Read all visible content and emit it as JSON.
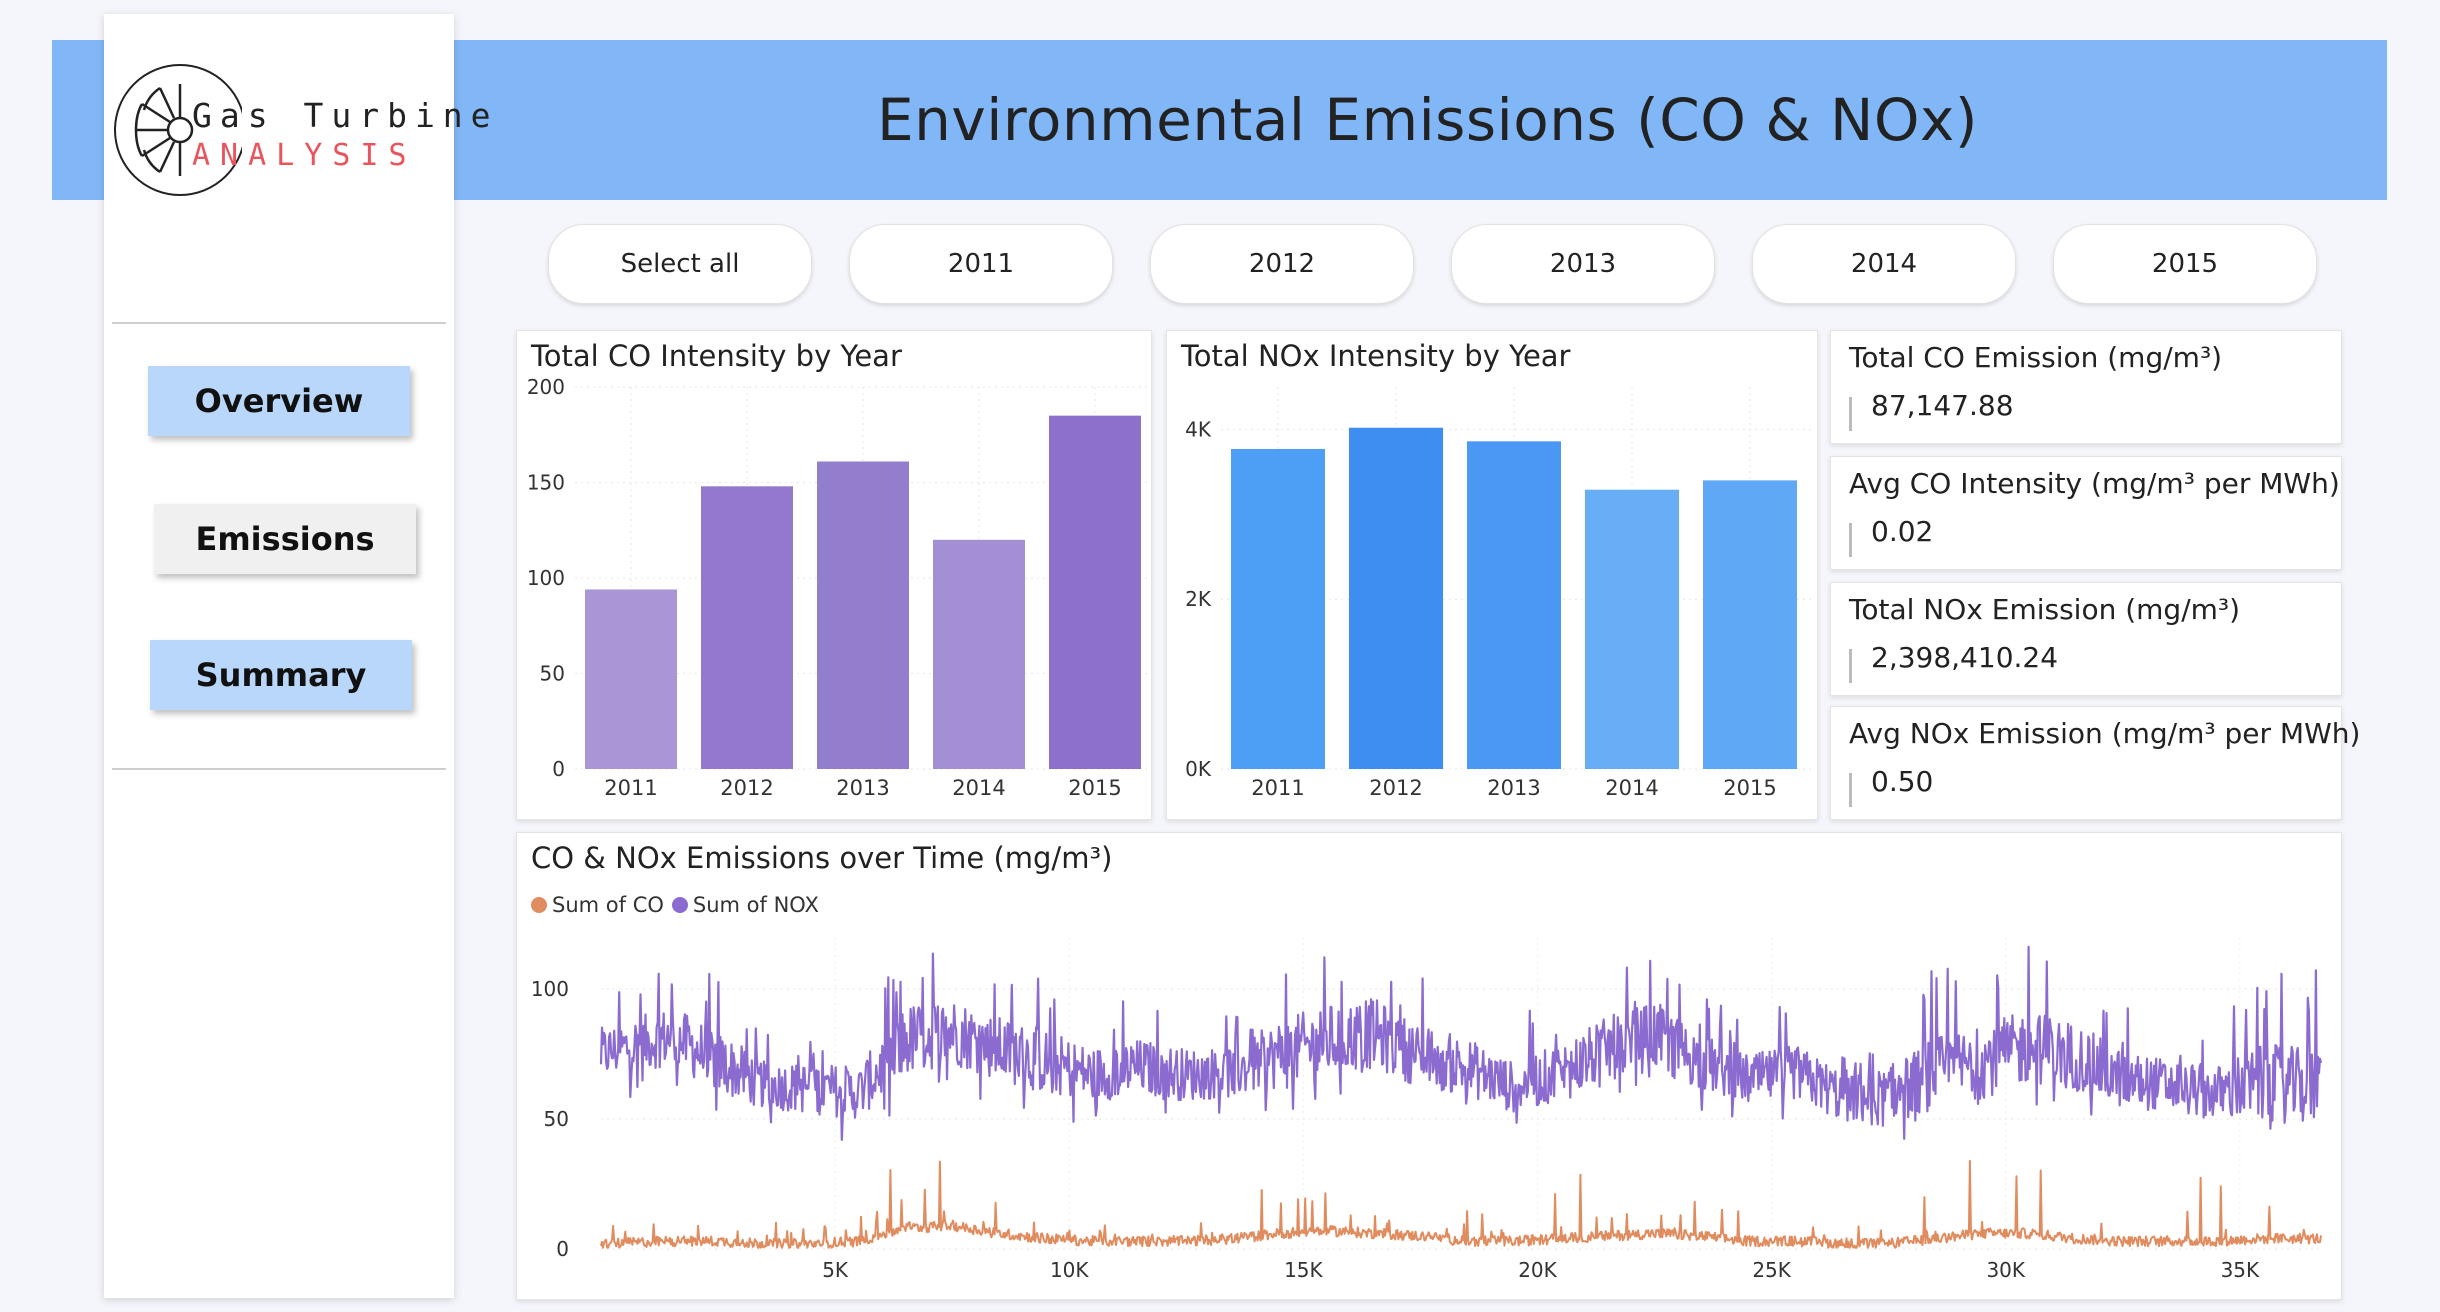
{
  "header": {
    "title": "Environmental Emissions (CO & NOx)"
  },
  "logo": {
    "line1": "Gas Turbine",
    "line2": "ANALYSIS",
    "accent_color": "#e8555c"
  },
  "nav": [
    {
      "label": "Overview",
      "style": "blue"
    },
    {
      "label": "Emissions",
      "style": "grey"
    },
    {
      "label": "Summary",
      "style": "blue"
    }
  ],
  "year_filter": [
    "Select all",
    "2011",
    "2012",
    "2013",
    "2014",
    "2015"
  ],
  "co_chart": {
    "title": "Total CO Intensity by Year",
    "yticks": [
      "0",
      "50",
      "100",
      "150",
      "200"
    ]
  },
  "nox_chart": {
    "title": "Total NOx Intensity by Year",
    "yticks": [
      "0K",
      "2K",
      "4K"
    ]
  },
  "cards": [
    {
      "label": "Total CO Emission (mg/m³)",
      "value": "87,147.88"
    },
    {
      "label": "Avg CO Intensity (mg/m³ per MWh)",
      "value": "0.02"
    },
    {
      "label": "Total NOx Emission (mg/m³)",
      "value": "2,398,410.24"
    },
    {
      "label": "Avg NOx Emission (mg/m³ per MWh)",
      "value": "0.50"
    }
  ],
  "line_chart": {
    "title": "CO & NOx Emissions over Time (mg/m³)",
    "legend": [
      {
        "name": "Sum of CO",
        "color": "#e08c5f"
      },
      {
        "name": "Sum of NOX",
        "color": "#8b6bcf"
      }
    ],
    "yticks": [
      "0",
      "50",
      "100"
    ],
    "xticks": [
      "5K",
      "10K",
      "15K",
      "20K",
      "25K",
      "30K",
      "35K"
    ]
  },
  "chart_data": [
    {
      "type": "bar",
      "title": "Total CO Intensity by Year",
      "categories": [
        "2011",
        "2012",
        "2013",
        "2014",
        "2015"
      ],
      "values": [
        94,
        148,
        161,
        120,
        185
      ],
      "ylim": [
        0,
        200
      ],
      "colors": [
        "#a896d6",
        "#9478cf",
        "#937dcd",
        "#a38fd4",
        "#8d70c9"
      ]
    },
    {
      "type": "bar",
      "title": "Total NOx Intensity by Year",
      "categories": [
        "2011",
        "2012",
        "2013",
        "2014",
        "2015"
      ],
      "values": [
        3770,
        4020,
        3860,
        3290,
        3400
      ],
      "ylim": [
        0,
        4500
      ],
      "colors": [
        "#4d9ff5",
        "#3d8ef0",
        "#4a98f3",
        "#68aef7",
        "#5ea8f6"
      ]
    },
    {
      "type": "line",
      "title": "CO & NOx Emissions over Time (mg/m³)",
      "xlim": [
        0,
        36733
      ],
      "ylim": [
        0,
        120
      ],
      "series": [
        {
          "name": "Sum of NOX",
          "color": "#8b6bcf",
          "x": [
            0,
            1500,
            2500,
            3500,
            4500,
            5500,
            6500,
            7500,
            8500,
            9500,
            10500,
            11500,
            12500,
            13500,
            14500,
            15500,
            16500,
            17500,
            18500,
            19500,
            20500,
            21500,
            22500,
            23500,
            24500,
            25500,
            26500,
            27500,
            28500,
            29500,
            30500,
            31500,
            32500,
            33500,
            34500,
            35500,
            36700
          ],
          "y": [
            75,
            82,
            72,
            63,
            62,
            60,
            80,
            84,
            77,
            72,
            67,
            70,
            67,
            68,
            75,
            80,
            83,
            74,
            70,
            62,
            68,
            77,
            82,
            72,
            65,
            68,
            59,
            58,
            68,
            72,
            78,
            74,
            65,
            63,
            60,
            64,
            62
          ],
          "ymin": [
            55,
            60,
            50,
            45,
            45,
            40,
            55,
            60,
            55,
            50,
            48,
            50,
            47,
            48,
            52,
            55,
            58,
            52,
            50,
            45,
            50,
            55,
            58,
            52,
            47,
            48,
            40,
            35,
            48,
            52,
            55,
            52,
            46,
            45,
            42,
            45,
            45
          ],
          "ymax": [
            100,
            110,
            105,
            85,
            90,
            85,
            118,
            118,
            110,
            105,
            95,
            98,
            92,
            92,
            110,
            118,
            118,
            105,
            100,
            88,
            100,
            110,
            118,
            100,
            90,
            95,
            85,
            85,
            110,
            115,
            118,
            110,
            95,
            90,
            88,
            112,
            110
          ]
        },
        {
          "name": "Sum of CO",
          "color": "#e08c5f",
          "x": [
            0,
            1500,
            2500,
            3500,
            4500,
            5500,
            6500,
            7500,
            8500,
            9500,
            10500,
            11500,
            12500,
            13500,
            14500,
            15500,
            16500,
            17500,
            18500,
            19500,
            20500,
            21500,
            22500,
            23500,
            24500,
            25500,
            26500,
            27500,
            28500,
            29500,
            30500,
            31500,
            32500,
            33500,
            34500,
            35500,
            36700
          ],
          "y": [
            2,
            3,
            3,
            2,
            2,
            3,
            8,
            9,
            6,
            4,
            3,
            3,
            3,
            4,
            6,
            7,
            6,
            5,
            3,
            3,
            4,
            5,
            6,
            5,
            3,
            3,
            2,
            2,
            4,
            6,
            6,
            4,
            3,
            3,
            3,
            4,
            4
          ],
          "ymin": [
            0,
            0,
            0,
            0,
            0,
            0,
            0,
            0,
            0,
            0,
            0,
            0,
            0,
            0,
            0,
            0,
            0,
            0,
            0,
            0,
            0,
            0,
            0,
            0,
            0,
            0,
            0,
            0,
            0,
            0,
            0,
            0,
            0,
            0,
            0,
            0,
            0
          ],
          "ymax": [
            10,
            12,
            15,
            10,
            18,
            12,
            40,
            45,
            30,
            15,
            12,
            10,
            10,
            12,
            38,
            28,
            20,
            15,
            15,
            10,
            35,
            20,
            25,
            18,
            15,
            12,
            20,
            12,
            30,
            38,
            42,
            22,
            15,
            18,
            40,
            20,
            18
          ]
        }
      ]
    }
  ]
}
